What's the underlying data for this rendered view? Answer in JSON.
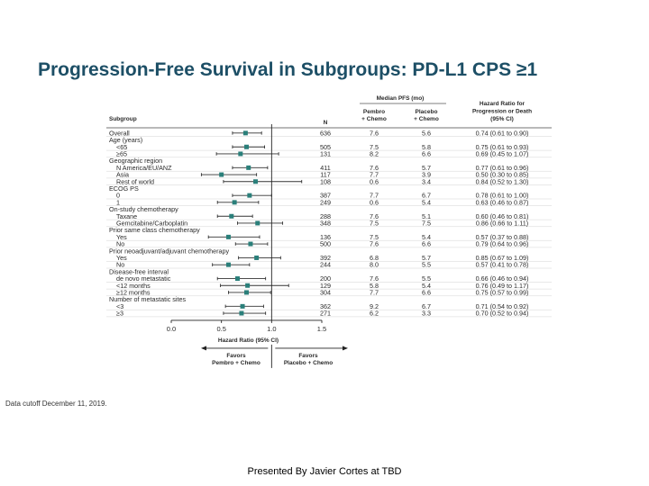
{
  "slide": {
    "title": "Progression-Free Survival in Subgroups: PD-L1 CPS ≥1",
    "data_cutoff": "Data cutoff December 11, 2019.",
    "footer": "Presented By Javier Cortes at TBD"
  },
  "table_headers": {
    "subgroup": "Subgroup",
    "n": "N",
    "median_pfs_group": "Median PFS (mo)",
    "pembro": [
      "Pembro",
      "+ Chemo"
    ],
    "placebo": [
      "Placebo",
      "+ Chemo"
    ],
    "hr": [
      "Hazard Ratio for",
      "Progression or Death",
      "(95% CI)"
    ]
  },
  "chart_data": {
    "type": "forest",
    "title": "",
    "xlabel": "Hazard Ratio (95% CI)",
    "xlim": [
      0.0,
      1.5
    ],
    "x_ticks": [
      "0.0",
      "0.5",
      "1.0",
      "1.5"
    ],
    "reference_line": 1.0,
    "favors_left": [
      "Favors",
      "Pembro + Chemo"
    ],
    "favors_right": [
      "Favors",
      "Placebo + Chemo"
    ],
    "marker_color": "#2a7f7a",
    "rows": [
      {
        "label": "Overall",
        "n": "636",
        "pembro": "7.6",
        "placebo": "5.6",
        "hr_text": "0.74 (0.61 to 0.90)",
        "hr": 0.74,
        "lo": 0.61,
        "hi": 0.9
      },
      {
        "label": "Age (years)",
        "header": true
      },
      {
        "label": "<65",
        "n": "505",
        "pembro": "7.5",
        "placebo": "5.8",
        "hr_text": "0.75 (0.61 to 0.93)",
        "hr": 0.75,
        "lo": 0.61,
        "hi": 0.93
      },
      {
        "label": "≥65",
        "n": "131",
        "pembro": "8.2",
        "placebo": "6.6",
        "hr_text": "0.69 (0.45 to 1.07)",
        "hr": 0.69,
        "lo": 0.45,
        "hi": 1.07
      },
      {
        "label": "Geographic region",
        "header": true
      },
      {
        "label": "N America/EU/ANZ",
        "n": "411",
        "pembro": "7.6",
        "placebo": "5.7",
        "hr_text": "0.77 (0.61 to 0.96)",
        "hr": 0.77,
        "lo": 0.61,
        "hi": 0.96
      },
      {
        "label": "Asia",
        "n": "117",
        "pembro": "7.7",
        "placebo": "3.9",
        "hr_text": "0.50 (0.30 to 0.85)",
        "hr": 0.5,
        "lo": 0.3,
        "hi": 0.85
      },
      {
        "label": "Rest of world",
        "n": "108",
        "pembro": "0.6",
        "placebo": "3.4",
        "hr_text": "0.84 (0.52 to 1.30)",
        "hr": 0.84,
        "lo": 0.52,
        "hi": 1.3
      },
      {
        "label": "ECOG PS",
        "header": true
      },
      {
        "label": "0",
        "n": "387",
        "pembro": "7.7",
        "placebo": "6.7",
        "hr_text": "0.78 (0.61 to 1.00)",
        "hr": 0.78,
        "lo": 0.61,
        "hi": 1.0
      },
      {
        "label": "1",
        "n": "249",
        "pembro": "0.6",
        "placebo": "5.4",
        "hr_text": "0.63 (0.46 to 0.87)",
        "hr": 0.63,
        "lo": 0.46,
        "hi": 0.87
      },
      {
        "label": "On-study chemotherapy",
        "header": true
      },
      {
        "label": "Taxane",
        "n": "288",
        "pembro": "7.6",
        "placebo": "5.1",
        "hr_text": "0.60 (0.46 to 0.81)",
        "hr": 0.6,
        "lo": 0.46,
        "hi": 0.81
      },
      {
        "label": "Gemcitabine/Carboplatin",
        "n": "348",
        "pembro": "7.5",
        "placebo": "7.5",
        "hr_text": "0.86 (0.66 to 1.11)",
        "hr": 0.86,
        "lo": 0.66,
        "hi": 1.11
      },
      {
        "label": "Prior same class chemotherapy",
        "header": true
      },
      {
        "label": "Yes",
        "n": "136",
        "pembro": "7.5",
        "placebo": "5.4",
        "hr_text": "0.57 (0.37 to 0.88)",
        "hr": 0.57,
        "lo": 0.37,
        "hi": 0.88
      },
      {
        "label": "No",
        "n": "500",
        "pembro": "7.6",
        "placebo": "6.6",
        "hr_text": "0.79 (0.64 to 0.96)",
        "hr": 0.79,
        "lo": 0.64,
        "hi": 0.96
      },
      {
        "label": "Prior neoadjuvant/adjuvant chemotherapy",
        "header": true
      },
      {
        "label": "Yes",
        "n": "392",
        "pembro": "6.8",
        "placebo": "5.7",
        "hr_text": "0.85 (0.67 to 1.09)",
        "hr": 0.85,
        "lo": 0.67,
        "hi": 1.09
      },
      {
        "label": "No",
        "n": "244",
        "pembro": "8.0",
        "placebo": "5.5",
        "hr_text": "0.57 (0.41 to 0.78)",
        "hr": 0.57,
        "lo": 0.41,
        "hi": 0.78
      },
      {
        "label": "Disease-free interval",
        "header": true
      },
      {
        "label": "de novo metastatic",
        "n": "200",
        "pembro": "7.6",
        "placebo": "5.5",
        "hr_text": "0.66 (0.46 to 0.94)",
        "hr": 0.66,
        "lo": 0.46,
        "hi": 0.94
      },
      {
        "label": "<12 months",
        "n": "129",
        "pembro": "5.8",
        "placebo": "5.4",
        "hr_text": "0.76 (0.49 to 1.17)",
        "hr": 0.76,
        "lo": 0.49,
        "hi": 1.17
      },
      {
        "label": "≥12 months",
        "n": "304",
        "pembro": "7.7",
        "placebo": "6.6",
        "hr_text": "0.75 (0.57 to 0.99)",
        "hr": 0.75,
        "lo": 0.57,
        "hi": 0.99
      },
      {
        "label": "Number of metastatic sites",
        "header": true
      },
      {
        "label": "<3",
        "n": "362",
        "pembro": "9.2",
        "placebo": "6.7",
        "hr_text": "0.71 (0.54 to 0.92)",
        "hr": 0.71,
        "lo": 0.54,
        "hi": 0.92
      },
      {
        "label": "≥3",
        "n": "271",
        "pembro": "6.2",
        "placebo": "3.3",
        "hr_text": "0.70 (0.52 to 0.94)",
        "hr": 0.7,
        "lo": 0.52,
        "hi": 0.94
      }
    ]
  }
}
